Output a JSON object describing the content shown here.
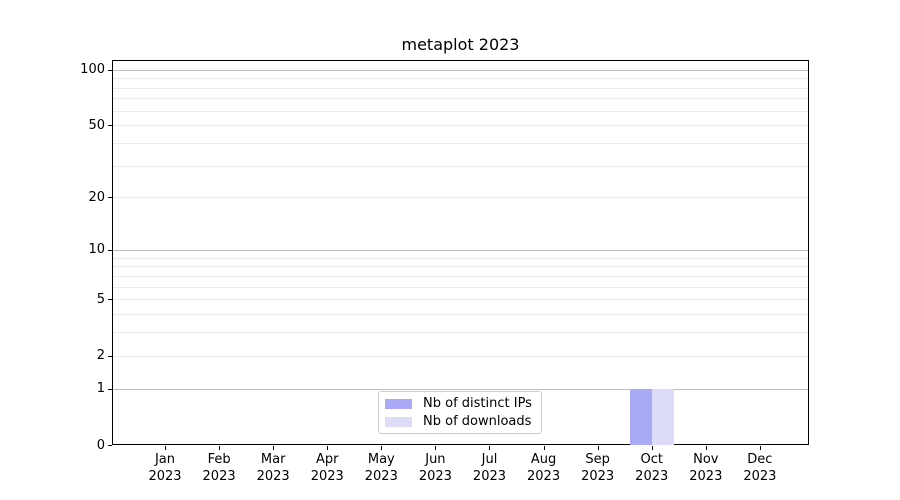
{
  "chart_data": {
    "type": "bar",
    "title": "metaplot 2023",
    "x_month_labels": [
      "Jan",
      "Feb",
      "Mar",
      "Apr",
      "May",
      "Jun",
      "Jul",
      "Aug",
      "Sep",
      "Oct",
      "Nov",
      "Dec"
    ],
    "x_year_label": "2023",
    "series": [
      {
        "name": "Nb of distinct IPs",
        "color": "#a9a9f5",
        "values": [
          0,
          0,
          0,
          0,
          0,
          0,
          0,
          0,
          0,
          1,
          0,
          0
        ]
      },
      {
        "name": "Nb of downloads",
        "color": "#dcdcf8",
        "values": [
          0,
          0,
          0,
          0,
          0,
          0,
          0,
          0,
          0,
          1,
          0,
          0
        ]
      }
    ],
    "y_axis": {
      "scale": "log1p",
      "tick_values": [
        0,
        1,
        2,
        5,
        10,
        20,
        50,
        100
      ],
      "tick_labels": [
        "0",
        "1",
        "2",
        "5",
        "10",
        "20",
        "50",
        "100"
      ],
      "max": 113
    },
    "grid": {
      "major_values": [
        1,
        10,
        100
      ],
      "minor_values": [
        2,
        3,
        4,
        5,
        6,
        7,
        8,
        9,
        20,
        30,
        40,
        50,
        60,
        70,
        80,
        90
      ],
      "major_color": "#bdbdbd",
      "minor_color": "#ebebeb"
    },
    "legend": {
      "position": "lower-center-inside",
      "entries": [
        "Nb of distinct IPs",
        "Nb of downloads"
      ]
    }
  },
  "colors": {
    "background": "#ffffff",
    "axis": "#000000",
    "text": "#000000",
    "legend_border": "#cccccc"
  }
}
